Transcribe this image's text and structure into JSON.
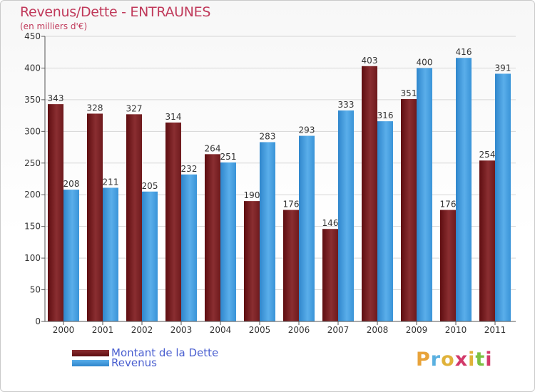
{
  "title": "Revenus/Dette - ENTRAUNES",
  "subtitle": "(en milliers d'€)",
  "colors": {
    "dette": "#7b1f22",
    "revenus": "#3d9be0",
    "title": "#c0395a",
    "legend_text": "#4a5fd0"
  },
  "legend": [
    {
      "label": "Montant de la Dette",
      "color": "#7b1f22"
    },
    {
      "label": "Revenus",
      "color": "#3d9be0"
    }
  ],
  "logo": {
    "letters": [
      "P",
      "r",
      "o",
      "x",
      "i",
      "t",
      "i"
    ],
    "colors": [
      "#e8a33a",
      "#5ab0e0",
      "#e0b23a",
      "#d2396a",
      "#e0b23a",
      "#7cc142",
      "#d2396a"
    ]
  },
  "chart_data": {
    "type": "bar",
    "categories": [
      "2000",
      "2001",
      "2002",
      "2003",
      "2004",
      "2005",
      "2006",
      "2007",
      "2008",
      "2009",
      "2010",
      "2011"
    ],
    "series": [
      {
        "name": "Montant de la Dette",
        "values": [
          343,
          328,
          327,
          314,
          264,
          190,
          176,
          146,
          403,
          351,
          176,
          254
        ]
      },
      {
        "name": "Revenus",
        "values": [
          208,
          211,
          205,
          232,
          251,
          283,
          293,
          333,
          316,
          400,
          416,
          391
        ]
      }
    ],
    "yticks": [
      "0",
      "50",
      "100",
      "150",
      "200",
      "250",
      "300",
      "350",
      "400",
      "450"
    ],
    "ylim": [
      0,
      450
    ],
    "grid": true
  }
}
